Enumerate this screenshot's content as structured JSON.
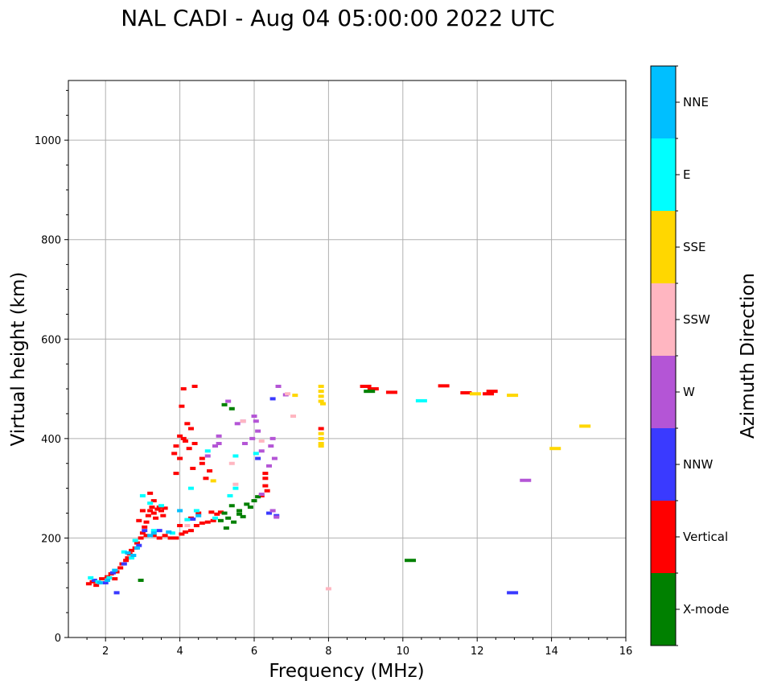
{
  "chart_data": {
    "type": "scatter",
    "title": "NAL CADI - Aug 04 05:00:00 2022 UTC",
    "xlabel": "Frequency (MHz)",
    "ylabel": "Virtual height (km)",
    "xlim": [
      1,
      16
    ],
    "ylim": [
      0,
      1120
    ],
    "xticks": [
      2,
      4,
      6,
      8,
      10,
      12,
      14,
      16
    ],
    "xtick_labels": [
      "2",
      "4",
      "6",
      "8",
      "10",
      "12",
      "14",
      "16"
    ],
    "yticks": [
      0,
      200,
      400,
      600,
      800,
      1000
    ],
    "ytick_labels": [
      "0",
      "200",
      "400",
      "600",
      "800",
      "1000"
    ],
    "grid": true,
    "colorbar": {
      "title": "Azimuth Direction",
      "categories": [
        "X-mode",
        "Vertical",
        "NNW",
        "W",
        "SSW",
        "SSE",
        "E",
        "NNE"
      ],
      "colors": [
        "#008000",
        "#ff0000",
        "#3a3aff",
        "#b455d6",
        "#ffb6c1",
        "#ffd700",
        "#00ffff",
        "#00bfff"
      ]
    },
    "series": [
      {
        "name": "Vertical",
        "points": [
          [
            1.55,
            108
          ],
          [
            1.65,
            112
          ],
          [
            1.75,
            105
          ],
          [
            1.9,
            118
          ],
          [
            2.05,
            122
          ],
          [
            2.15,
            128
          ],
          [
            2.25,
            118
          ],
          [
            2.3,
            132
          ],
          [
            2.4,
            140
          ],
          [
            2.45,
            148
          ],
          [
            2.55,
            155
          ],
          [
            2.6,
            160
          ],
          [
            2.65,
            168
          ],
          [
            2.7,
            175
          ],
          [
            2.8,
            180
          ],
          [
            2.85,
            190
          ],
          [
            2.95,
            200
          ],
          [
            3.0,
            210
          ],
          [
            3.05,
            222
          ],
          [
            3.1,
            232
          ],
          [
            3.15,
            245
          ],
          [
            3.2,
            255
          ],
          [
            3.25,
            262
          ],
          [
            3.3,
            250
          ],
          [
            3.35,
            240
          ],
          [
            3.4,
            258
          ],
          [
            3.45,
            262
          ],
          [
            3.5,
            255
          ],
          [
            3.55,
            245
          ],
          [
            3.6,
            260
          ],
          [
            3.2,
            290
          ],
          [
            3.1,
            205
          ],
          [
            3.3,
            205
          ],
          [
            3.45,
            200
          ],
          [
            3.6,
            205
          ],
          [
            3.75,
            200
          ],
          [
            3.9,
            200
          ],
          [
            4.05,
            208
          ],
          [
            4.15,
            212
          ],
          [
            4.3,
            215
          ],
          [
            4.45,
            225
          ],
          [
            4.6,
            230
          ],
          [
            4.75,
            232
          ],
          [
            4.9,
            235
          ],
          [
            5.0,
            248
          ],
          [
            5.1,
            252
          ],
          [
            4.85,
            252
          ],
          [
            4.0,
            225
          ],
          [
            4.3,
            240
          ],
          [
            4.1,
            500
          ],
          [
            4.4,
            505
          ],
          [
            4.05,
            465
          ],
          [
            4.2,
            430
          ],
          [
            4.3,
            420
          ],
          [
            4.15,
            395
          ],
          [
            4.25,
            380
          ],
          [
            4.4,
            390
          ],
          [
            4.0,
            360
          ],
          [
            3.9,
            330
          ],
          [
            3.85,
            370
          ],
          [
            3.9,
            385
          ],
          [
            4.0,
            405
          ],
          [
            4.1,
            400
          ],
          [
            4.35,
            340
          ],
          [
            4.6,
            360
          ],
          [
            4.8,
            335
          ],
          [
            6.3,
            330
          ],
          [
            6.3,
            320
          ],
          [
            6.3,
            305
          ],
          [
            6.35,
            295
          ],
          [
            6.2,
            285
          ],
          [
            7.8,
            420
          ],
          [
            9.0,
            505
          ],
          [
            9.2,
            500
          ],
          [
            9.7,
            493
          ],
          [
            11.1,
            506
          ],
          [
            11.7,
            492
          ],
          [
            12.3,
            490
          ],
          [
            12.4,
            495
          ],
          [
            3.3,
            275
          ],
          [
            3.0,
            255
          ],
          [
            2.9,
            235
          ],
          [
            4.6,
            350
          ],
          [
            4.7,
            320
          ],
          [
            4.5,
            250
          ]
        ]
      },
      {
        "name": "X-mode",
        "points": [
          [
            5.1,
            235
          ],
          [
            5.3,
            240
          ],
          [
            5.45,
            232
          ],
          [
            5.6,
            255
          ],
          [
            5.8,
            268
          ],
          [
            6.0,
            275
          ],
          [
            6.1,
            283
          ],
          [
            5.2,
            250
          ],
          [
            5.4,
            265
          ],
          [
            5.25,
            220
          ],
          [
            5.6,
            248
          ],
          [
            9.1,
            495
          ],
          [
            10.2,
            155
          ],
          [
            5.4,
            460
          ],
          [
            5.2,
            468
          ],
          [
            2.95,
            115
          ],
          [
            5.7,
            243
          ],
          [
            5.9,
            262
          ]
        ]
      },
      {
        "name": "NNW",
        "points": [
          [
            1.7,
            115
          ],
          [
            2.0,
            110
          ],
          [
            2.3,
            90
          ],
          [
            2.5,
            148
          ],
          [
            2.9,
            185
          ],
          [
            3.05,
            215
          ],
          [
            3.45,
            215
          ],
          [
            4.35,
            238
          ],
          [
            6.1,
            360
          ],
          [
            6.5,
            480
          ],
          [
            12.95,
            90
          ],
          [
            6.4,
            250
          ],
          [
            6.6,
            245
          ],
          [
            2.2,
            130
          ]
        ]
      },
      {
        "name": "W",
        "points": [
          [
            4.95,
            385
          ],
          [
            5.05,
            390
          ],
          [
            4.75,
            365
          ],
          [
            5.3,
            475
          ],
          [
            5.55,
            430
          ],
          [
            5.75,
            390
          ],
          [
            5.95,
            400
          ],
          [
            6.05,
            435
          ],
          [
            6.1,
            415
          ],
          [
            6.2,
            375
          ],
          [
            6.45,
            385
          ],
          [
            6.5,
            400
          ],
          [
            6.55,
            360
          ],
          [
            6.65,
            505
          ],
          [
            6.85,
            488
          ],
          [
            5.05,
            405
          ],
          [
            6.5,
            255
          ],
          [
            6.6,
            242
          ],
          [
            13.3,
            316
          ],
          [
            6.2,
            288
          ],
          [
            5.7,
            435
          ],
          [
            6.0,
            445
          ],
          [
            6.4,
            345
          ]
        ]
      },
      {
        "name": "SSW",
        "points": [
          [
            5.4,
            350
          ],
          [
            6.2,
            395
          ],
          [
            7.05,
            445
          ],
          [
            8.0,
            98
          ],
          [
            5.7,
            435
          ],
          [
            5.5,
            308
          ],
          [
            6.9,
            490
          ],
          [
            4.2,
            225
          ]
        ]
      },
      {
        "name": "SSE",
        "points": [
          [
            7.8,
            505
          ],
          [
            7.8,
            495
          ],
          [
            7.8,
            485
          ],
          [
            7.8,
            475
          ],
          [
            7.8,
            410
          ],
          [
            7.8,
            400
          ],
          [
            7.8,
            390
          ],
          [
            7.85,
            470
          ],
          [
            7.1,
            487
          ],
          [
            11.95,
            490
          ],
          [
            12.95,
            487
          ],
          [
            14.1,
            380
          ],
          [
            14.9,
            425
          ],
          [
            4.9,
            315
          ],
          [
            7.8,
            385
          ]
        ]
      },
      {
        "name": "E",
        "points": [
          [
            1.6,
            120
          ],
          [
            1.8,
            112
          ],
          [
            2.1,
            120
          ],
          [
            2.5,
            172
          ],
          [
            2.7,
            160
          ],
          [
            2.8,
            195
          ],
          [
            3.0,
            285
          ],
          [
            3.2,
            270
          ],
          [
            3.5,
            265
          ],
          [
            3.8,
            210
          ],
          [
            4.3,
            300
          ],
          [
            4.45,
            255
          ],
          [
            4.75,
            375
          ],
          [
            4.95,
            240
          ],
          [
            5.35,
            285
          ],
          [
            5.5,
            300
          ],
          [
            5.5,
            365
          ],
          [
            6.05,
            370
          ],
          [
            10.5,
            476
          ],
          [
            3.3,
            215
          ],
          [
            4.2,
            237
          ]
        ]
      },
      {
        "name": "NNE",
        "points": [
          [
            1.85,
            110
          ],
          [
            2.05,
            115
          ],
          [
            2.25,
            135
          ],
          [
            2.6,
            170
          ],
          [
            2.85,
            180
          ],
          [
            3.2,
            205
          ],
          [
            3.3,
            210
          ],
          [
            3.7,
            212
          ],
          [
            4.0,
            255
          ],
          [
            4.5,
            245
          ],
          [
            2.75,
            165
          ]
        ]
      }
    ]
  }
}
